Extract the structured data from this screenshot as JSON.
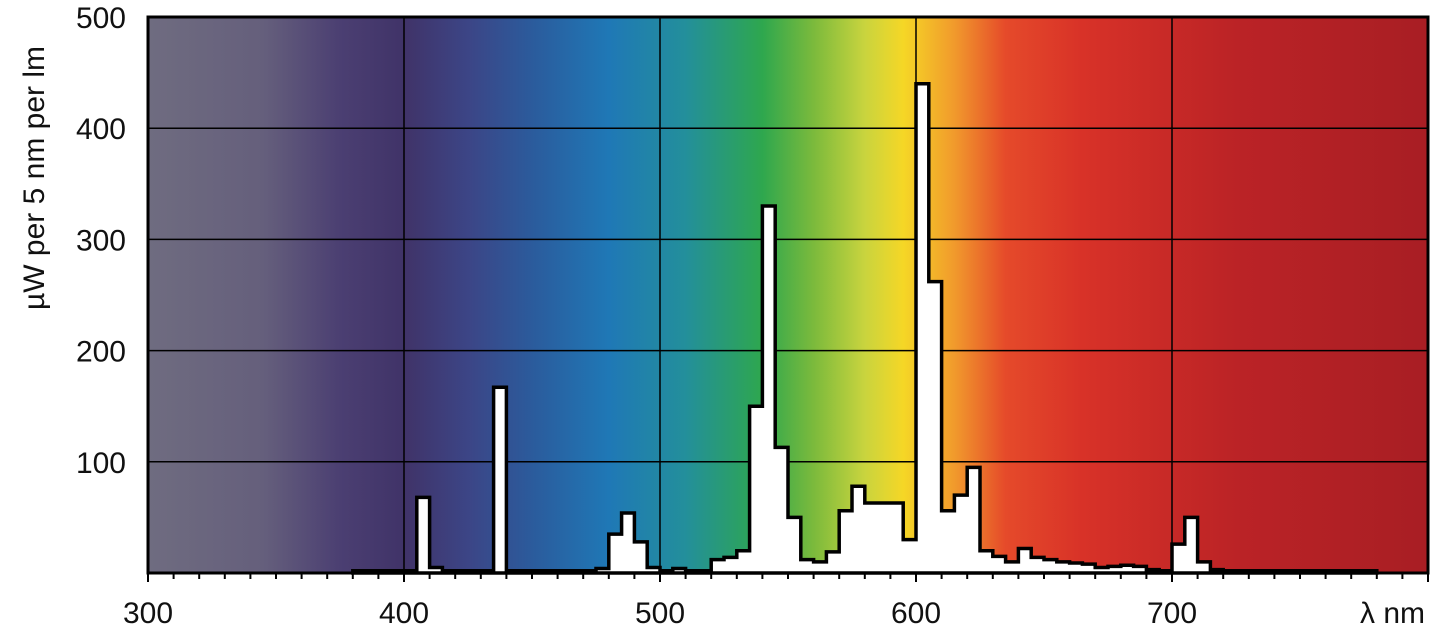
{
  "chart_data": {
    "type": "area",
    "xlabel": "λ nm",
    "ylabel": "µW per 5 nm per lm",
    "xlim": [
      300,
      800
    ],
    "ylim": [
      0,
      500
    ],
    "x_ticks": [
      300,
      400,
      500,
      600,
      700
    ],
    "y_ticks": [
      100,
      200,
      300,
      400,
      500
    ],
    "x_minor_step": 10,
    "grid": true,
    "background": "visible spectrum color gradient",
    "colors": {
      "fill": "#ffffff",
      "stroke": "#000000"
    },
    "series": [
      {
        "x": [
          380,
          400,
          405,
          410,
          415,
          420,
          430,
          435,
          440,
          445,
          450,
          460,
          470,
          475,
          480,
          485,
          490,
          495,
          500,
          505,
          510,
          520,
          525,
          530,
          535,
          540,
          545,
          550,
          555,
          560,
          565,
          570,
          575,
          580,
          585,
          590,
          595,
          600,
          605,
          610,
          615,
          620,
          625,
          630,
          635,
          640,
          645,
          650,
          655,
          660,
          665,
          670,
          675,
          680,
          685,
          690,
          695,
          700,
          705,
          710,
          715,
          720,
          725,
          730,
          740,
          750,
          760,
          770,
          780
        ],
        "values": [
          2,
          2,
          68,
          5,
          2,
          2,
          2,
          167,
          2,
          2,
          2,
          2,
          2,
          4,
          35,
          54,
          28,
          5,
          2,
          4,
          2,
          12,
          14,
          20,
          150,
          330,
          113,
          50,
          12,
          10,
          19,
          56,
          78,
          63,
          63,
          63,
          30,
          440,
          262,
          56,
          70,
          95,
          20,
          15,
          10,
          22,
          14,
          12,
          10,
          9,
          8,
          5,
          6,
          7,
          6,
          3,
          2,
          26,
          50,
          10,
          3,
          2,
          2,
          2,
          2,
          2,
          2,
          2,
          2
        ]
      }
    ]
  }
}
